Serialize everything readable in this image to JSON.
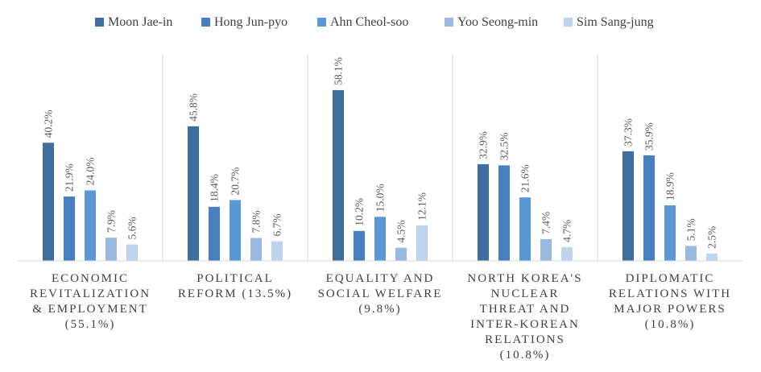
{
  "chart_data": {
    "type": "bar",
    "title": "",
    "xlabel": "",
    "ylabel": "",
    "ylim": [
      0,
      65
    ],
    "grid": false,
    "legend_position": "top",
    "categories": [
      [
        "ECONOMIC",
        "REVITALIZATION",
        "& EMPLOYMENT",
        "(55.1%)"
      ],
      [
        "POLITICAL",
        "REFORM (13.5%)"
      ],
      [
        "EQUALITY AND",
        "SOCIAL WELFARE",
        "(9.8%)"
      ],
      [
        "NORTH KOREA'S",
        "NUCLEAR",
        "THREAT AND",
        "INTER-KOREAN",
        "RELATIONS",
        "(10.8%)"
      ],
      [
        "DIPLOMATIC",
        "RELATIONS WITH",
        "MAJOR POWERS",
        "(10.8%)"
      ]
    ],
    "series": [
      {
        "name": "Moon Jae-in",
        "color": "#3f6d9c",
        "values": [
          40.2,
          45.8,
          58.1,
          32.9,
          37.3
        ],
        "labels": [
          "40.2%",
          "45.8%",
          "58.1%",
          "32.9%",
          "37.3%"
        ]
      },
      {
        "name": "Hong Jun-pyo",
        "color": "#4a7fbd",
        "values": [
          21.9,
          18.4,
          10.2,
          32.5,
          35.9
        ],
        "labels": [
          "21.9%",
          "18.4%",
          "10.2%",
          "32.5%",
          "35.9%"
        ]
      },
      {
        "name": "Ahn Cheol-soo",
        "color": "#5a97d3",
        "values": [
          24.0,
          20.7,
          15.0,
          21.6,
          18.9
        ],
        "labels": [
          "24.0%",
          "20.7%",
          "15.0%",
          "21.6%",
          "18.9%"
        ]
      },
      {
        "name": "Yoo Seong-min",
        "color": "#9bb9df",
        "values": [
          7.9,
          7.8,
          4.5,
          7.4,
          5.1
        ],
        "labels": [
          "7.9%",
          "7.8%",
          "4.5%",
          "7.4%",
          "5.1%"
        ]
      },
      {
        "name": "Sim Sang-jung",
        "color": "#bdd3ee",
        "values": [
          5.6,
          6.7,
          12.1,
          4.7,
          2.5
        ],
        "labels": [
          "5.6%",
          "6.7%",
          "12.1%",
          "4.7%",
          "2.5%"
        ]
      }
    ]
  }
}
